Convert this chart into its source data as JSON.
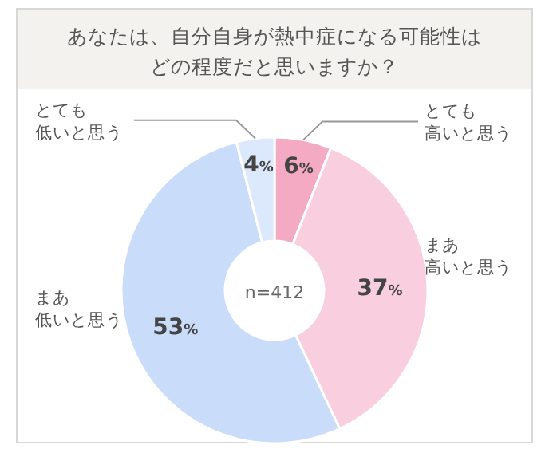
{
  "chart_data": {
    "type": "donut",
    "title": "あなたは、自分自身が熱中症になる可能性はどの程度だと思いますか？",
    "categories": [
      "とても高いと思う",
      "まあ高いと思う",
      "まあ低いと思う",
      "とても低いと思う"
    ],
    "values": [
      6,
      37,
      53,
      4
    ],
    "value_labels": [
      "6%",
      "37%",
      "53%",
      "4%"
    ],
    "colors": [
      "#f5aac4",
      "#f9cfdf",
      "#c9dcfa",
      "#dce8fb"
    ],
    "annotations": [
      "n=412"
    ]
  }
}
